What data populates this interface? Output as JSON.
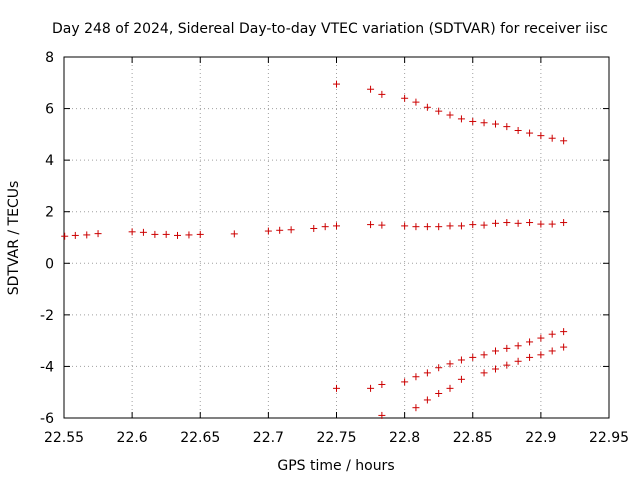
{
  "chart_data": {
    "type": "scatter",
    "title": "Day 248 of 2024, Sidereal Day-to-day VTEC variation (SDTVAR) for receiver iisc",
    "xlabel": "GPS time / hours",
    "ylabel": "SDTVAR / TECUs",
    "xlim": [
      22.55,
      22.95
    ],
    "ylim": [
      -6,
      8
    ],
    "x_ticks": [
      "22.55",
      "22.6",
      "22.65",
      "22.7",
      "22.75",
      "22.8",
      "22.85",
      "22.9",
      "22.95"
    ],
    "y_ticks": [
      "-6",
      "-4",
      "-2",
      "0",
      "2",
      "4",
      "6",
      "8"
    ],
    "grid": true,
    "marker": "+",
    "color": "#cc0000",
    "points": [
      [
        22.5505,
        1.05
      ],
      [
        22.5583,
        1.08
      ],
      [
        22.5667,
        1.1
      ],
      [
        22.575,
        1.15
      ],
      [
        22.6,
        1.22
      ],
      [
        22.6083,
        1.2
      ],
      [
        22.6167,
        1.12
      ],
      [
        22.625,
        1.12
      ],
      [
        22.6333,
        1.08
      ],
      [
        22.6417,
        1.1
      ],
      [
        22.65,
        1.12
      ],
      [
        22.675,
        1.14
      ],
      [
        22.7,
        1.25
      ],
      [
        22.7083,
        1.28
      ],
      [
        22.7167,
        1.3
      ],
      [
        22.7333,
        1.35
      ],
      [
        22.7417,
        1.42
      ],
      [
        22.75,
        1.45
      ],
      [
        22.775,
        1.5
      ],
      [
        22.7833,
        1.48
      ],
      [
        22.8,
        1.45
      ],
      [
        22.8083,
        1.42
      ],
      [
        22.8167,
        1.42
      ],
      [
        22.825,
        1.42
      ],
      [
        22.8333,
        1.45
      ],
      [
        22.8417,
        1.45
      ],
      [
        22.85,
        1.5
      ],
      [
        22.8583,
        1.48
      ],
      [
        22.8667,
        1.55
      ],
      [
        22.875,
        1.58
      ],
      [
        22.8833,
        1.55
      ],
      [
        22.8917,
        1.58
      ],
      [
        22.9,
        1.52
      ],
      [
        22.9083,
        1.52
      ],
      [
        22.9167,
        1.58
      ],
      [
        22.75,
        6.95
      ],
      [
        22.775,
        6.75
      ],
      [
        22.7833,
        6.55
      ],
      [
        22.8,
        6.4
      ],
      [
        22.8083,
        6.25
      ],
      [
        22.8167,
        6.05
      ],
      [
        22.825,
        5.9
      ],
      [
        22.8333,
        5.75
      ],
      [
        22.8417,
        5.6
      ],
      [
        22.85,
        5.5
      ],
      [
        22.8583,
        5.45
      ],
      [
        22.8667,
        5.4
      ],
      [
        22.875,
        5.3
      ],
      [
        22.8833,
        5.15
      ],
      [
        22.8917,
        5.05
      ],
      [
        22.9,
        4.95
      ],
      [
        22.9083,
        4.85
      ],
      [
        22.9167,
        4.75
      ],
      [
        22.75,
        -4.85
      ],
      [
        22.775,
        -4.85
      ],
      [
        22.7833,
        -4.7
      ],
      [
        22.8,
        -4.6
      ],
      [
        22.8083,
        -4.4
      ],
      [
        22.8167,
        -4.25
      ],
      [
        22.825,
        -4.05
      ],
      [
        22.8333,
        -3.9
      ],
      [
        22.8417,
        -3.75
      ],
      [
        22.85,
        -3.65
      ],
      [
        22.8583,
        -3.55
      ],
      [
        22.8667,
        -3.4
      ],
      [
        22.875,
        -3.3
      ],
      [
        22.8833,
        -3.2
      ],
      [
        22.8917,
        -3.05
      ],
      [
        22.9,
        -2.9
      ],
      [
        22.9083,
        -2.75
      ],
      [
        22.9167,
        -2.65
      ],
      [
        22.7833,
        -5.9
      ],
      [
        22.8083,
        -5.6
      ],
      [
        22.8167,
        -5.3
      ],
      [
        22.825,
        -5.05
      ],
      [
        22.8333,
        -4.85
      ],
      [
        22.8417,
        -4.5
      ],
      [
        22.8583,
        -4.25
      ],
      [
        22.8667,
        -4.1
      ],
      [
        22.875,
        -3.95
      ],
      [
        22.8833,
        -3.8
      ],
      [
        22.8917,
        -3.65
      ],
      [
        22.9,
        -3.55
      ],
      [
        22.9083,
        -3.4
      ],
      [
        22.9167,
        -3.25
      ]
    ]
  }
}
